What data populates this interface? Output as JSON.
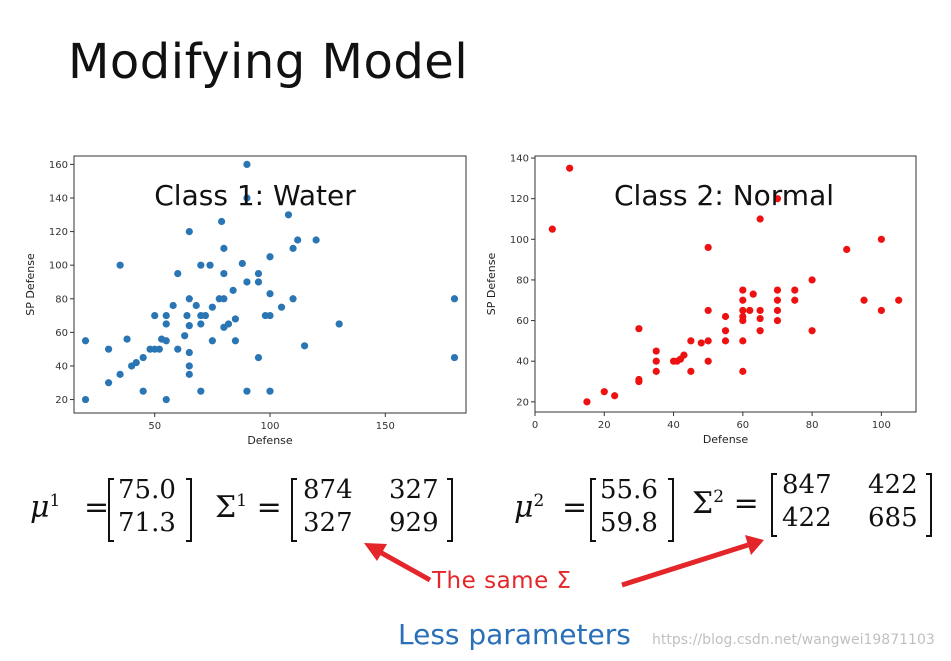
{
  "slide": {
    "title": "Modifying Model",
    "arrow_label": "The same Σ",
    "footer": "Less parameters",
    "watermark": "https://blog.csdn.net/wangwei19871103"
  },
  "colors": {
    "water": "#2a75b3",
    "normal": "#ee1111",
    "arrow": "#e4262a",
    "footer": "#2a6fb8"
  },
  "params": {
    "class1": {
      "mu_label": "μ",
      "mu_sup": "1",
      "mu": [
        "75.0",
        "71.3"
      ],
      "sigma_label": "Σ",
      "sigma_sup": "1",
      "sigma": [
        [
          "874",
          "327"
        ],
        [
          "327",
          "929"
        ]
      ]
    },
    "class2": {
      "mu_label": "μ",
      "mu_sup": "2",
      "mu": [
        "55.6",
        "59.8"
      ],
      "sigma_label": "Σ",
      "sigma_sup": "2",
      "sigma": [
        [
          "847",
          "422"
        ],
        [
          "422",
          "685"
        ]
      ]
    }
  },
  "chart_data": [
    {
      "type": "scatter",
      "title": "Class 1: Water",
      "xlabel": "Defense",
      "ylabel": "SP Defense",
      "xlim": [
        15,
        185
      ],
      "ylim": [
        12,
        165
      ],
      "xticks": [
        50,
        100,
        150
      ],
      "yticks": [
        20,
        40,
        60,
        80,
        100,
        120,
        140,
        160
      ],
      "points": [
        [
          20,
          55
        ],
        [
          20,
          20
        ],
        [
          30,
          50
        ],
        [
          30,
          30
        ],
        [
          35,
          100
        ],
        [
          35,
          35
        ],
        [
          38,
          56
        ],
        [
          40,
          40
        ],
        [
          42,
          42
        ],
        [
          45,
          45
        ],
        [
          45,
          25
        ],
        [
          48,
          50
        ],
        [
          50,
          70
        ],
        [
          50,
          50
        ],
        [
          52,
          50
        ],
        [
          53,
          56
        ],
        [
          55,
          70
        ],
        [
          55,
          65
        ],
        [
          55,
          55
        ],
        [
          55,
          20
        ],
        [
          58,
          76
        ],
        [
          60,
          95
        ],
        [
          60,
          50
        ],
        [
          63,
          58
        ],
        [
          64,
          70
        ],
        [
          65,
          120
        ],
        [
          65,
          80
        ],
        [
          65,
          64
        ],
        [
          65,
          48
        ],
        [
          65,
          40
        ],
        [
          65,
          35
        ],
        [
          68,
          76
        ],
        [
          70,
          100
        ],
        [
          70,
          70
        ],
        [
          70,
          65
        ],
        [
          70,
          25
        ],
        [
          72,
          70
        ],
        [
          74,
          100
        ],
        [
          75,
          75
        ],
        [
          75,
          55
        ],
        [
          78,
          80
        ],
        [
          79,
          126
        ],
        [
          80,
          110
        ],
        [
          80,
          95
        ],
        [
          80,
          80
        ],
        [
          80,
          63
        ],
        [
          82,
          65
        ],
        [
          84,
          85
        ],
        [
          85,
          68
        ],
        [
          85,
          55
        ],
        [
          88,
          101
        ],
        [
          90,
          160
        ],
        [
          90,
          140
        ],
        [
          90,
          90
        ],
        [
          90,
          25
        ],
        [
          95,
          95
        ],
        [
          95,
          90
        ],
        [
          95,
          45
        ],
        [
          98,
          70
        ],
        [
          100,
          105
        ],
        [
          100,
          83
        ],
        [
          100,
          70
        ],
        [
          100,
          25
        ],
        [
          105,
          75
        ],
        [
          108,
          130
        ],
        [
          110,
          110
        ],
        [
          110,
          80
        ],
        [
          112,
          115
        ],
        [
          115,
          52
        ],
        [
          120,
          115
        ],
        [
          130,
          65
        ],
        [
          180,
          80
        ],
        [
          180,
          45
        ]
      ]
    },
    {
      "type": "scatter",
      "title": "Class 2: Normal",
      "xlabel": "Defense",
      "ylabel": "SP Defense",
      "xlim": [
        0,
        110
      ],
      "ylim": [
        15,
        141
      ],
      "xticks": [
        0,
        20,
        40,
        60,
        80,
        100
      ],
      "yticks": [
        20,
        40,
        60,
        80,
        100,
        120,
        140
      ],
      "points": [
        [
          5,
          105
        ],
        [
          10,
          135
        ],
        [
          15,
          20
        ],
        [
          20,
          25
        ],
        [
          23,
          23
        ],
        [
          30,
          56
        ],
        [
          30,
          30
        ],
        [
          30,
          31
        ],
        [
          35,
          45
        ],
        [
          35,
          40
        ],
        [
          35,
          35
        ],
        [
          40,
          40
        ],
        [
          41,
          40
        ],
        [
          42,
          41
        ],
        [
          43,
          43
        ],
        [
          45,
          50
        ],
        [
          45,
          35
        ],
        [
          48,
          49
        ],
        [
          50,
          96
        ],
        [
          50,
          65
        ],
        [
          50,
          50
        ],
        [
          50,
          40
        ],
        [
          55,
          62
        ],
        [
          55,
          55
        ],
        [
          55,
          50
        ],
        [
          60,
          75
        ],
        [
          60,
          70
        ],
        [
          60,
          65
        ],
        [
          60,
          62
        ],
        [
          60,
          60
        ],
        [
          60,
          50
        ],
        [
          60,
          35
        ],
        [
          62,
          65
        ],
        [
          63,
          73
        ],
        [
          65,
          110
        ],
        [
          65,
          65
        ],
        [
          65,
          61
        ],
        [
          65,
          55
        ],
        [
          70,
          120
        ],
        [
          70,
          75
        ],
        [
          70,
          70
        ],
        [
          70,
          65
        ],
        [
          70,
          60
        ],
        [
          75,
          75
        ],
        [
          75,
          70
        ],
        [
          80,
          80
        ],
        [
          80,
          55
        ],
        [
          90,
          95
        ],
        [
          95,
          70
        ],
        [
          100,
          100
        ],
        [
          100,
          65
        ],
        [
          105,
          70
        ]
      ]
    }
  ]
}
